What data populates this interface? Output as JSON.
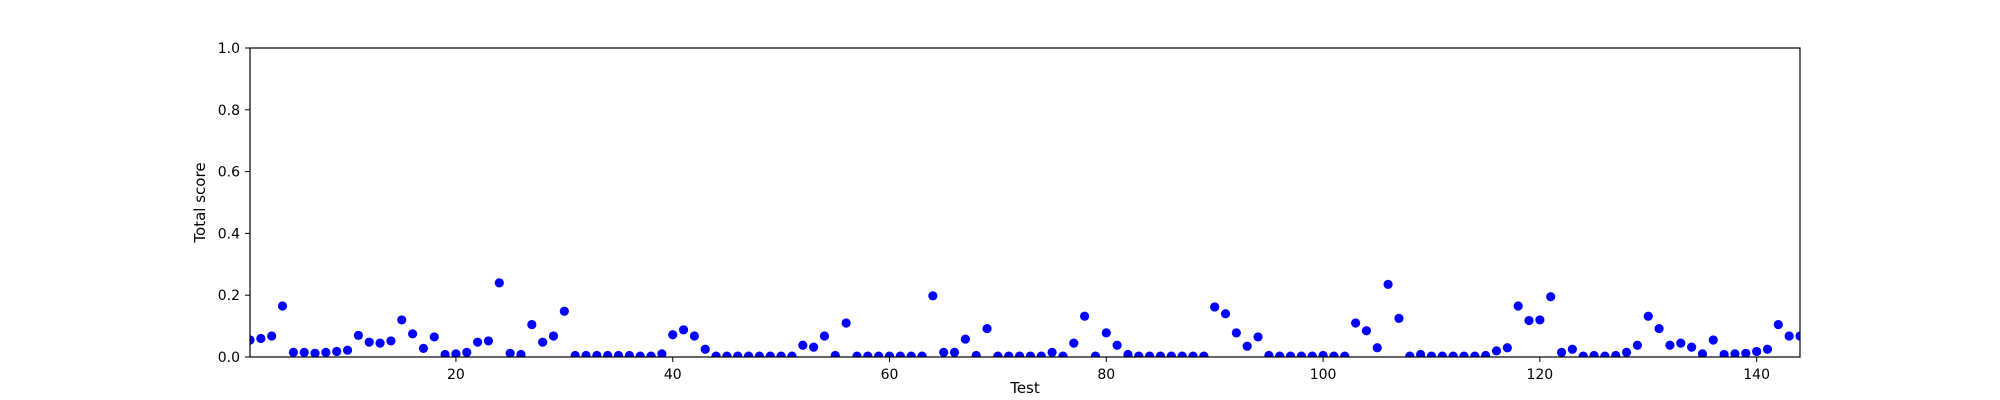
{
  "chart_data": {
    "type": "scatter",
    "title": "",
    "xlabel": "Test",
    "ylabel": "Total score",
    "xlim": [
      1,
      144
    ],
    "ylim": [
      0.0,
      1.0
    ],
    "xticks": [
      20,
      40,
      60,
      80,
      100,
      120,
      140
    ],
    "xtick_labels": [
      "20",
      "40",
      "60",
      "80",
      "100",
      "120",
      "140"
    ],
    "yticks": [
      0.0,
      0.2,
      0.4,
      0.6,
      0.8,
      1.0
    ],
    "ytick_labels": [
      "0.0",
      "0.2",
      "0.4",
      "0.6",
      "0.8",
      "1.0"
    ],
    "grid": false,
    "marker_color": "#0000ff",
    "x": [
      1,
      2,
      3,
      4,
      5,
      6,
      7,
      8,
      9,
      10,
      11,
      12,
      13,
      14,
      15,
      16,
      17,
      18,
      19,
      20,
      21,
      22,
      23,
      24,
      25,
      26,
      27,
      28,
      29,
      30,
      31,
      32,
      33,
      34,
      35,
      36,
      37,
      38,
      39,
      40,
      41,
      42,
      43,
      44,
      45,
      46,
      47,
      48,
      49,
      50,
      51,
      52,
      53,
      54,
      55,
      56,
      57,
      58,
      59,
      60,
      61,
      62,
      63,
      64,
      65,
      66,
      67,
      68,
      69,
      70,
      71,
      72,
      73,
      74,
      75,
      76,
      77,
      78,
      79,
      80,
      81,
      82,
      83,
      84,
      85,
      86,
      87,
      88,
      89,
      90,
      91,
      92,
      93,
      94,
      95,
      96,
      97,
      98,
      99,
      100,
      101,
      102,
      103,
      104,
      105,
      106,
      107,
      108,
      109,
      110,
      111,
      112,
      113,
      114,
      115,
      116,
      117,
      118,
      119,
      120,
      121,
      122,
      123,
      124,
      125,
      126,
      127,
      128,
      129,
      130,
      131,
      132,
      133,
      134,
      135,
      136,
      137,
      138,
      139,
      140,
      141,
      142,
      143,
      144
    ],
    "y": [
      0.055,
      0.06,
      0.068,
      0.165,
      0.015,
      0.015,
      0.012,
      0.015,
      0.018,
      0.022,
      0.07,
      0.048,
      0.045,
      0.052,
      0.12,
      0.075,
      0.028,
      0.065,
      0.008,
      0.01,
      0.015,
      0.048,
      0.052,
      0.24,
      0.012,
      0.008,
      0.105,
      0.048,
      0.068,
      0.148,
      0.005,
      0.005,
      0.005,
      0.005,
      0.005,
      0.005,
      0.003,
      0.003,
      0.01,
      0.072,
      0.088,
      0.068,
      0.025,
      0.003,
      0.003,
      0.003,
      0.003,
      0.003,
      0.003,
      0.003,
      0.003,
      0.038,
      0.032,
      0.068,
      0.005,
      0.11,
      0.003,
      0.003,
      0.003,
      0.003,
      0.003,
      0.003,
      0.003,
      0.198,
      0.015,
      0.015,
      0.058,
      0.005,
      0.092,
      0.003,
      0.003,
      0.003,
      0.003,
      0.003,
      0.015,
      0.003,
      0.045,
      0.132,
      0.003,
      0.078,
      0.038,
      0.008,
      0.003,
      0.003,
      0.003,
      0.003,
      0.003,
      0.003,
      0.003,
      0.162,
      0.14,
      0.078,
      0.035,
      0.065,
      0.005,
      0.003,
      0.003,
      0.003,
      0.003,
      0.005,
      0.003,
      0.003,
      0.11,
      0.085,
      0.03,
      0.235,
      0.125,
      0.003,
      0.008,
      0.003,
      0.003,
      0.003,
      0.003,
      0.003,
      0.005,
      0.02,
      0.03,
      0.165,
      0.118,
      0.12,
      0.195,
      0.015,
      0.025,
      0.003,
      0.005,
      0.003,
      0.005,
      0.015,
      0.038,
      0.132,
      0.092,
      0.038,
      0.045,
      0.032,
      0.01,
      0.055,
      0.008,
      0.01,
      0.012,
      0.018,
      0.025,
      0.105,
      0.068,
      0.068
    ]
  }
}
